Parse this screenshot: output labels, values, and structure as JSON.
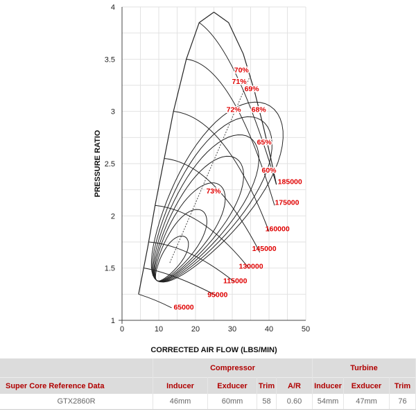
{
  "chart_data": {
    "type": "line",
    "xlabel": "CORRECTED AIR FLOW (LBS/MIN)",
    "ylabel": "PRESSURE RATIO",
    "xlim": [
      0,
      50
    ],
    "ylim": [
      1,
      4
    ],
    "xticks": [
      "0",
      "10",
      "20",
      "30",
      "40",
      "50"
    ],
    "yticks": [
      "1",
      "1.5",
      "2",
      "2.5",
      "3",
      "3.5",
      "4"
    ],
    "grid": true,
    "line_color": "#222222",
    "label_color": "#e00000",
    "surge_line": [
      [
        4.5,
        1.25
      ],
      [
        7,
        1.7
      ],
      [
        9,
        2.1
      ],
      [
        11.5,
        2.55
      ],
      [
        14,
        3.0
      ],
      [
        17.5,
        3.5
      ],
      [
        21,
        3.85
      ],
      [
        25,
        3.95
      ]
    ],
    "choke_line": [
      [
        25,
        3.95
      ],
      [
        29,
        3.85
      ],
      [
        33,
        3.55
      ],
      [
        36,
        3.2
      ],
      [
        38.5,
        2.85
      ],
      [
        40.5,
        2.55
      ],
      [
        42,
        2.3
      ]
    ],
    "speed_lines": [
      {
        "label": "185000",
        "points": [
          [
            21,
            3.85
          ],
          [
            31,
            3.6
          ],
          [
            42,
            2.3
          ]
        ],
        "label_at": [
          45.7,
          2.33
        ]
      },
      {
        "label": "175000",
        "points": [
          [
            17.5,
            3.5
          ],
          [
            30,
            3.45
          ],
          [
            41.5,
            2.1
          ]
        ],
        "label_at": [
          44.9,
          2.13
        ]
      },
      {
        "label": "160000",
        "points": [
          [
            14,
            3.0
          ],
          [
            28,
            2.95
          ],
          [
            40,
            1.85
          ]
        ],
        "label_at": [
          42.3,
          1.88
        ]
      },
      {
        "label": "145000",
        "points": [
          [
            11.5,
            2.55
          ],
          [
            25,
            2.5
          ],
          [
            37.5,
            1.65
          ]
        ],
        "label_at": [
          38.7,
          1.69
        ]
      },
      {
        "label": "130000",
        "points": [
          [
            9,
            2.1
          ],
          [
            22,
            2.05
          ],
          [
            34.5,
            1.5
          ]
        ],
        "label_at": [
          35.1,
          1.52
        ]
      },
      {
        "label": "115000",
        "points": [
          [
            7.3,
            1.75
          ],
          [
            18,
            1.72
          ],
          [
            30.5,
            1.37
          ]
        ],
        "label_at": [
          30.8,
          1.38
        ]
      },
      {
        "label": "95000",
        "points": [
          [
            6,
            1.5
          ],
          [
            14,
            1.45
          ],
          [
            25.5,
            1.24
          ]
        ],
        "label_at": [
          26,
          1.25
        ]
      },
      {
        "label": "65000",
        "points": [
          [
            4.5,
            1.25
          ],
          [
            9,
            1.2
          ],
          [
            13.5,
            1.12
          ]
        ],
        "label_at": [
          16.8,
          1.13
        ]
      }
    ],
    "efficiency_labels": [
      {
        "label": "70%",
        "at": [
          32.5,
          3.4
        ]
      },
      {
        "label": "71%",
        "at": [
          31.9,
          3.29
        ]
      },
      {
        "label": "69%",
        "at": [
          35.3,
          3.22
        ]
      },
      {
        "label": "72%",
        "at": [
          30.4,
          3.02
        ]
      },
      {
        "label": "68%",
        "at": [
          37.2,
          3.02
        ]
      },
      {
        "label": "65%",
        "at": [
          38.7,
          2.71
        ]
      },
      {
        "label": "60%",
        "at": [
          40.0,
          2.44
        ]
      },
      {
        "label": "73%",
        "at": [
          24.9,
          2.24
        ]
      }
    ]
  },
  "table": {
    "group_headers": {
      "compressor": "Compressor",
      "turbine": "Turbine"
    },
    "columns": [
      "Super Core Reference Data",
      "Inducer",
      "Exducer",
      "Trim",
      "A/R",
      "Inducer",
      "Exducer",
      "Trim"
    ],
    "rows": [
      [
        "GTX2860R",
        "46mm",
        "60mm",
        "58",
        "0.60",
        "54mm",
        "47mm",
        "76"
      ]
    ]
  }
}
